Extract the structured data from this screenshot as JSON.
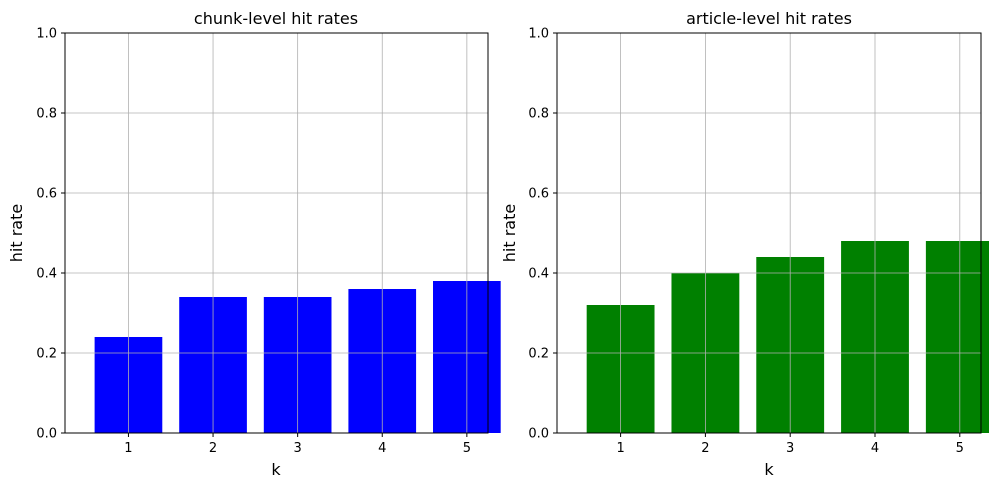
{
  "chart_data": [
    {
      "type": "bar",
      "title": "chunk-level hit rates",
      "xlabel": "k",
      "ylabel": "hit rate",
      "categories": [
        "1",
        "2",
        "3",
        "4",
        "5"
      ],
      "values": [
        0.24,
        0.34,
        0.34,
        0.36,
        0.38
      ],
      "ylim": [
        0,
        1
      ],
      "yticks": [
        "0.0",
        "0.2",
        "0.4",
        "0.6",
        "0.8",
        "1.0"
      ],
      "color": "#0000ff",
      "grid": true
    },
    {
      "type": "bar",
      "title": "article-level hit rates",
      "xlabel": "k",
      "ylabel": "hit rate",
      "categories": [
        "1",
        "2",
        "3",
        "4",
        "5"
      ],
      "values": [
        0.32,
        0.4,
        0.44,
        0.48,
        0.48
      ],
      "ylim": [
        0,
        1
      ],
      "yticks": [
        "0.0",
        "0.2",
        "0.4",
        "0.6",
        "0.8",
        "1.0"
      ],
      "color": "#008000",
      "grid": true
    }
  ]
}
